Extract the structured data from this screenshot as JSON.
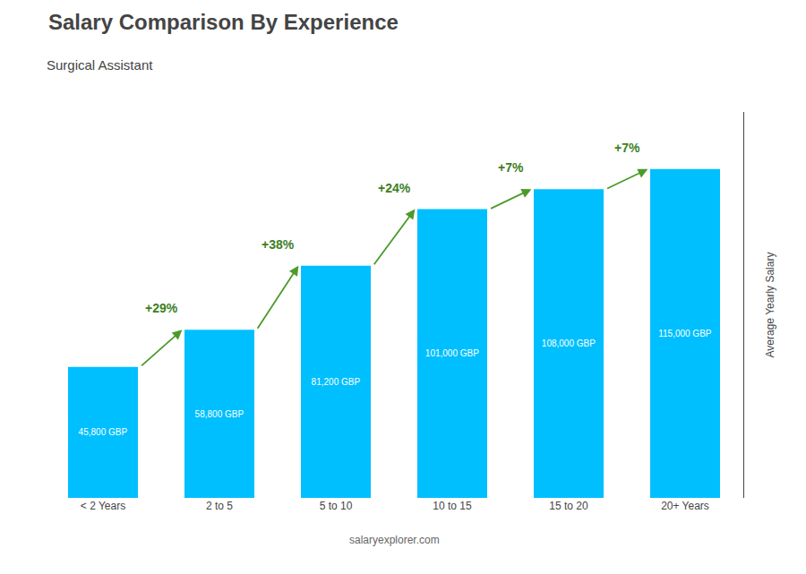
{
  "chart_data": {
    "type": "bar",
    "title": "Salary Comparison By Experience",
    "subtitle": "Surgical Assistant",
    "categories": [
      "< 2 Years",
      "2 to 5",
      "5 to 10",
      "10 to 15",
      "15 to 20",
      "20+ Years"
    ],
    "values": [
      45800,
      58800,
      81200,
      101000,
      108000,
      115000
    ],
    "value_labels": [
      "45,800 GBP",
      "58,800 GBP",
      "81,200 GBP",
      "101,000 GBP",
      "108,000 GBP",
      "115,000 GBP"
    ],
    "data_labels": true,
    "color": "#00BFFF",
    "ylim": [
      0,
      135000
    ],
    "ylabel": "Average Yearly Salary",
    "annotations": [
      "+29%",
      "+38%",
      "+24%",
      "+7%",
      "+7%"
    ],
    "footer": "salaryexplorer.com",
    "grid": false,
    "tick_labels": "x"
  }
}
